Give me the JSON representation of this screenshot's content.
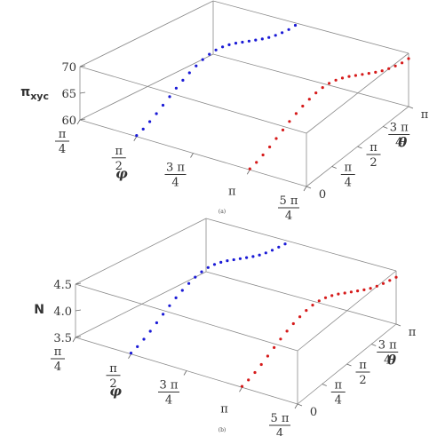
{
  "chart_data": [
    {
      "type": "scatter",
      "caption": "(a)",
      "zlabel_main": "π",
      "zlabel_sub": "xyc",
      "xlabel": "φ",
      "ylabel": "θ",
      "zticks": [
        "60",
        "65",
        "70"
      ],
      "zlim": [
        60,
        70
      ],
      "xticks": [
        {
          "num": "π",
          "den": "4"
        },
        {
          "num": "π",
          "den": "2"
        },
        {
          "num": "3 π",
          "den": "4"
        },
        {
          "num": "π",
          "den": ""
        },
        {
          "num": "5 π",
          "den": "4"
        }
      ],
      "yticks": [
        {
          "num": "0",
          "den": ""
        },
        {
          "num": "π",
          "den": "4"
        },
        {
          "num": "π",
          "den": "2"
        },
        {
          "num": "3 π",
          "den": "4"
        },
        {
          "num": "π",
          "den": ""
        }
      ],
      "series": [
        {
          "color": "#1a1ad6",
          "phi_start": 1.5708,
          "theta_start": 0.0,
          "values": [
            60.2,
            60.9,
            61.8,
            62.8,
            63.9,
            65.0,
            66.1,
            67.1,
            68.0,
            68.8,
            69.5,
            70.0,
            70.3,
            70.4,
            70.3,
            70.1,
            69.8,
            69.5,
            69.2,
            68.9,
            68.7,
            68.6,
            68.6,
            68.7,
            69.0
          ]
        },
        {
          "color": "#d61a1a",
          "phi_start": 3.1416,
          "theta_start": 0.0,
          "values": [
            60.2,
            60.9,
            61.8,
            62.8,
            63.9,
            65.0,
            66.1,
            67.1,
            68.0,
            68.8,
            69.5,
            70.0,
            70.3,
            70.4,
            70.3,
            70.1,
            69.8,
            69.5,
            69.2,
            68.9,
            68.7,
            68.6,
            68.6,
            68.7,
            69.0
          ]
        }
      ]
    },
    {
      "type": "scatter",
      "caption": "(b)",
      "zlabel_main": "N",
      "zlabel_sub": "",
      "xlabel": "φ",
      "ylabel": "θ",
      "zticks": [
        "3.5",
        "4.0",
        "4.5"
      ],
      "zlim": [
        3.5,
        4.5
      ],
      "xticks": [
        {
          "num": "π",
          "den": "4"
        },
        {
          "num": "π",
          "den": "2"
        },
        {
          "num": "3 π",
          "den": "4"
        },
        {
          "num": "π",
          "den": ""
        },
        {
          "num": "5 π",
          "den": "4"
        }
      ],
      "yticks": [
        {
          "num": "0",
          "den": ""
        },
        {
          "num": "π",
          "den": "4"
        },
        {
          "num": "π",
          "den": "2"
        },
        {
          "num": "3 π",
          "den": "4"
        },
        {
          "num": "π",
          "den": ""
        }
      ],
      "series": [
        {
          "color": "#1a1ad6",
          "phi_start": 1.5708,
          "theta_start": 0.0,
          "values": [
            3.52,
            3.59,
            3.68,
            3.78,
            3.89,
            4.0,
            4.11,
            4.21,
            4.3,
            4.38,
            4.45,
            4.5,
            4.53,
            4.54,
            4.53,
            4.51,
            4.48,
            4.45,
            4.42,
            4.39,
            4.37,
            4.36,
            4.36,
            4.37,
            4.38
          ]
        },
        {
          "color": "#d61a1a",
          "phi_start": 3.1416,
          "theta_start": 0.0,
          "values": [
            3.52,
            3.59,
            3.68,
            3.78,
            3.89,
            4.0,
            4.11,
            4.21,
            4.3,
            4.38,
            4.45,
            4.5,
            4.53,
            4.54,
            4.53,
            4.51,
            4.48,
            4.45,
            4.42,
            4.39,
            4.37,
            4.36,
            4.36,
            4.37,
            4.38
          ]
        }
      ]
    }
  ]
}
